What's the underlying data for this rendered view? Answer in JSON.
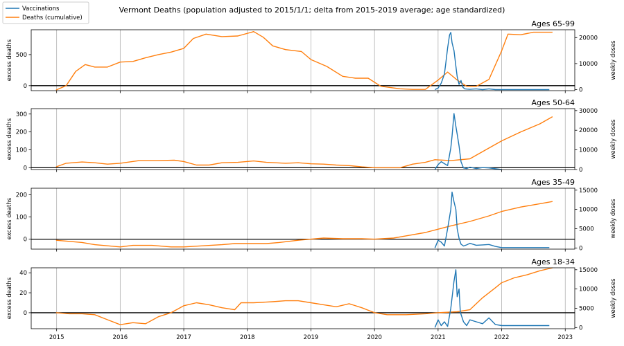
{
  "title": "Vermont Deaths (population adjusted to 2015/1/1; delta from 2015-2019 average; age standardized)",
  "legend": {
    "placement": "top-left",
    "items": [
      {
        "label": "Vaccinations",
        "color": "#1f77b4"
      },
      {
        "label": "Deaths (cumulative)",
        "color": "#ff7f0e"
      }
    ]
  },
  "colors": {
    "deaths": "#ff7f0e",
    "vaccinations": "#1f77b4",
    "grid": "#b0b0b0",
    "zero_line": "#000000"
  },
  "chart_data": [
    {
      "type": "line",
      "title": "Ages 65-99",
      "ylabel": "excess deaths",
      "y2label": "weekly doses",
      "xlim": [
        2014.6,
        2023.15
      ],
      "ylim": [
        -80,
        900
      ],
      "y2lim": [
        -400,
        23000
      ],
      "xticks": [
        "2015",
        "2016",
        "2017",
        "2018",
        "2019",
        "2020",
        "2021",
        "2022",
        "2023"
      ],
      "yticks": [
        0,
        500
      ],
      "y2ticks": [
        0,
        10000,
        20000
      ],
      "grid": "x",
      "series": [
        {
          "name": "Deaths (cumulative)",
          "axis": "left",
          "x": [
            2014.99,
            2015.15,
            2015.3,
            2015.45,
            2015.6,
            2015.8,
            2016.0,
            2016.2,
            2016.4,
            2016.6,
            2016.8,
            2017.0,
            2017.15,
            2017.35,
            2017.6,
            2017.85,
            2018.1,
            2018.25,
            2018.4,
            2018.6,
            2018.85,
            2019.0,
            2019.25,
            2019.5,
            2019.7,
            2019.9,
            2020.1,
            2020.4,
            2020.6,
            2020.8,
            2021.0,
            2021.15,
            2021.3,
            2021.45,
            2021.6,
            2021.8,
            2022.0,
            2022.1,
            2022.3,
            2022.5,
            2022.8
          ],
          "y": [
            -70,
            0,
            230,
            340,
            300,
            300,
            380,
            390,
            450,
            500,
            540,
            600,
            760,
            830,
            790,
            800,
            870,
            780,
            640,
            580,
            550,
            420,
            310,
            150,
            120,
            120,
            -10,
            -50,
            -60,
            -60,
            90,
            220,
            90,
            -10,
            -10,
            100,
            560,
            830,
            820,
            860,
            860
          ]
        },
        {
          "name": "Vaccinations",
          "axis": "right",
          "x": [
            2020.95,
            2021.0,
            2021.05,
            2021.1,
            2021.12,
            2021.15,
            2021.18,
            2021.2,
            2021.22,
            2021.25,
            2021.28,
            2021.3,
            2021.33,
            2021.36,
            2021.39,
            2021.42,
            2021.45,
            2021.5,
            2021.6,
            2021.7,
            2021.8,
            2021.9,
            2022.0,
            2022.2,
            2022.5,
            2022.75
          ],
          "y": [
            0,
            600,
            2500,
            6000,
            10000,
            16000,
            21000,
            22000,
            18000,
            15000,
            9000,
            5000,
            2000,
            3500,
            900,
            300,
            200,
            100,
            300,
            0,
            300,
            0,
            0,
            0,
            0,
            0
          ]
        }
      ]
    },
    {
      "type": "line",
      "title": "Ages 50-64",
      "ylabel": "excess deaths",
      "y2label": "weekly doses",
      "xlim": [
        2014.6,
        2023.15
      ],
      "ylim": [
        -10,
        330
      ],
      "y2lim": [
        0,
        31000
      ],
      "xticks": [
        "2015",
        "2016",
        "2017",
        "2018",
        "2019",
        "2020",
        "2021",
        "2022",
        "2023"
      ],
      "yticks": [
        0,
        100,
        200,
        300
      ],
      "y2ticks": [
        0,
        10000,
        20000,
        30000
      ],
      "grid": "x",
      "series": [
        {
          "name": "Deaths (cumulative)",
          "axis": "left",
          "x": [
            2014.99,
            2015.15,
            2015.4,
            2015.6,
            2015.8,
            2016.0,
            2016.3,
            2016.6,
            2016.85,
            2017.0,
            2017.2,
            2017.4,
            2017.6,
            2017.85,
            2018.1,
            2018.3,
            2018.6,
            2018.8,
            2019.0,
            2019.2,
            2019.4,
            2019.6,
            2019.8,
            2020.0,
            2020.2,
            2020.4,
            2020.6,
            2020.8,
            2020.95,
            2021.2,
            2021.5,
            2021.7,
            2022.0,
            2022.3,
            2022.6,
            2022.8
          ],
          "y": [
            5,
            25,
            32,
            28,
            20,
            25,
            40,
            40,
            42,
            35,
            15,
            15,
            28,
            30,
            38,
            30,
            25,
            28,
            22,
            20,
            15,
            12,
            5,
            0,
            0,
            0,
            20,
            30,
            45,
            40,
            50,
            90,
            150,
            200,
            245,
            285
          ]
        },
        {
          "name": "Vaccinations",
          "axis": "right",
          "x": [
            2020.95,
            2021.0,
            2021.05,
            2021.1,
            2021.15,
            2021.2,
            2021.22,
            2021.25,
            2021.28,
            2021.3,
            2021.33,
            2021.36,
            2021.4,
            2021.45,
            2021.5,
            2021.6,
            2021.7,
            2021.8,
            2022.0
          ],
          "y": [
            0,
            2500,
            4000,
            3000,
            2000,
            11000,
            17000,
            28500,
            22000,
            18000,
            12000,
            4000,
            800,
            500,
            1200,
            500,
            1000,
            800,
            0
          ]
        }
      ]
    },
    {
      "type": "line",
      "title": "Ages 35-49",
      "ylabel": "excess deaths",
      "y2label": "weekly doses",
      "xlim": [
        2014.6,
        2023.15
      ],
      "ylim": [
        -45,
        230
      ],
      "y2lim": [
        -300,
        15500
      ],
      "xticks": [
        "2015",
        "2016",
        "2017",
        "2018",
        "2019",
        "2020",
        "2021",
        "2022",
        "2023"
      ],
      "yticks": [
        0,
        100,
        200
      ],
      "y2ticks": [
        0,
        5000,
        10000,
        15000
      ],
      "grid": "x",
      "series": [
        {
          "name": "Deaths (cumulative)",
          "axis": "left",
          "x": [
            2014.99,
            2015.2,
            2015.4,
            2015.6,
            2015.8,
            2016.0,
            2016.2,
            2016.5,
            2016.8,
            2017.0,
            2017.3,
            2017.6,
            2017.8,
            2018.0,
            2018.3,
            2018.5,
            2018.8,
            2019.0,
            2019.2,
            2019.5,
            2019.8,
            2020.0,
            2020.3,
            2020.5,
            2020.8,
            2021.0,
            2021.2,
            2021.5,
            2021.8,
            2022.0,
            2022.3,
            2022.6,
            2022.8
          ],
          "y": [
            -5,
            -10,
            -15,
            -25,
            -30,
            -35,
            -28,
            -28,
            -35,
            -35,
            -30,
            -25,
            -20,
            -20,
            -20,
            -15,
            -5,
            0,
            5,
            2,
            2,
            0,
            5,
            15,
            30,
            45,
            60,
            80,
            105,
            125,
            145,
            160,
            170
          ]
        },
        {
          "name": "Vaccinations",
          "axis": "right",
          "x": [
            2020.95,
            2021.0,
            2021.05,
            2021.1,
            2021.15,
            2021.2,
            2021.22,
            2021.25,
            2021.28,
            2021.3,
            2021.33,
            2021.36,
            2021.4,
            2021.45,
            2021.5,
            2021.6,
            2021.7,
            2021.8,
            2021.9,
            2022.0,
            2022.3,
            2022.75
          ],
          "y": [
            0,
            2000,
            1500,
            500,
            5000,
            10000,
            14500,
            12000,
            10000,
            5000,
            2500,
            1000,
            500,
            800,
            1200,
            700,
            800,
            900,
            400,
            100,
            100,
            100
          ]
        }
      ]
    },
    {
      "type": "line",
      "title": "Ages 18-34",
      "ylabel": "excess deaths",
      "y2label": "weekly doses",
      "xlim": [
        2014.6,
        2023.15
      ],
      "ylim": [
        -16,
        45
      ],
      "y2lim": [
        -300,
        15500
      ],
      "xticks": [
        "2015",
        "2016",
        "2017",
        "2018",
        "2019",
        "2020",
        "2021",
        "2022",
        "2023"
      ],
      "yticks": [
        0,
        20,
        40
      ],
      "y2ticks": [
        0,
        5000,
        10000,
        15000
      ],
      "grid": "x",
      "series": [
        {
          "name": "Deaths (cumulative)",
          "axis": "left",
          "x": [
            2014.99,
            2015.2,
            2015.4,
            2015.6,
            2015.8,
            2016.0,
            2016.2,
            2016.4,
            2016.6,
            2016.8,
            2017.0,
            2017.2,
            2017.4,
            2017.6,
            2017.8,
            2017.9,
            2018.1,
            2018.4,
            2018.6,
            2018.8,
            2019.0,
            2019.2,
            2019.4,
            2019.6,
            2019.8,
            2020.0,
            2020.2,
            2020.5,
            2020.8,
            2021.0,
            2021.3,
            2021.5,
            2021.7,
            2021.9,
            2022.0,
            2022.2,
            2022.4,
            2022.6,
            2022.8
          ],
          "y": [
            0,
            -1,
            -1,
            -2,
            -7,
            -12,
            -10,
            -11,
            -4,
            0,
            7,
            10,
            8,
            5,
            3,
            10,
            10,
            11,
            12,
            12,
            10,
            8,
            6,
            9,
            5,
            0,
            -2,
            -2,
            -1,
            0,
            1,
            3,
            15,
            25,
            30,
            35,
            38,
            42,
            45
          ]
        },
        {
          "name": "Vaccinations",
          "axis": "right",
          "x": [
            2020.95,
            2021.0,
            2021.05,
            2021.1,
            2021.15,
            2021.2,
            2021.25,
            2021.28,
            2021.3,
            2021.33,
            2021.35,
            2021.4,
            2021.45,
            2021.5,
            2021.6,
            2021.7,
            2021.8,
            2021.9,
            2022.0,
            2022.3,
            2022.75
          ],
          "y": [
            0,
            2000,
            500,
            1500,
            300,
            5000,
            12000,
            15000,
            8000,
            10000,
            4000,
            1500,
            500,
            2000,
            1500,
            1000,
            2500,
            800,
            500,
            500,
            500
          ]
        }
      ]
    }
  ]
}
